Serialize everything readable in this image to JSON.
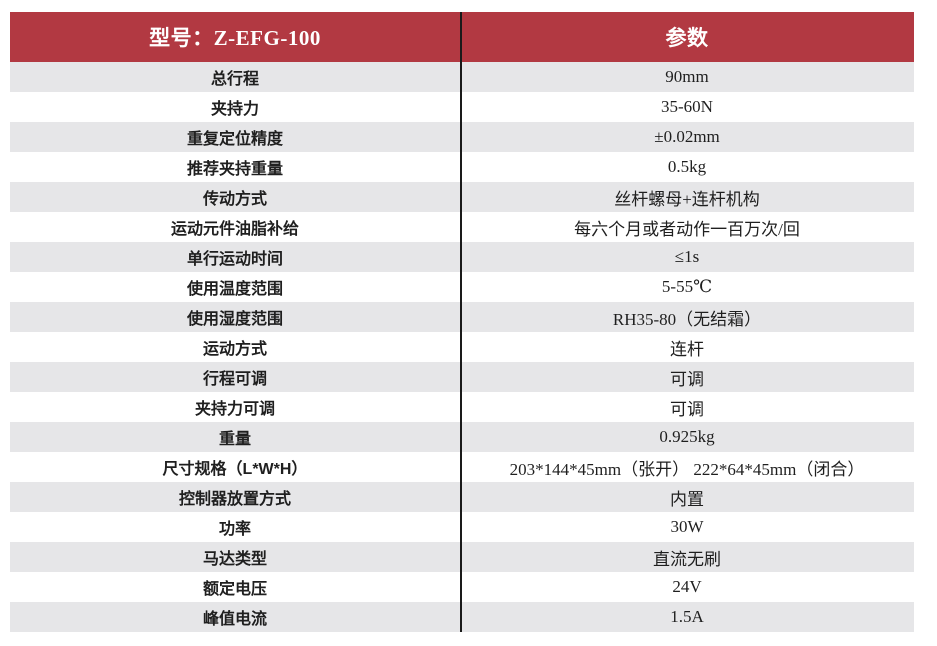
{
  "table": {
    "header": {
      "model_label": "型号：Z-EFG-100",
      "param_label": "参数"
    },
    "rows": [
      {
        "label": "总行程",
        "value": "90mm"
      },
      {
        "label": "夹持力",
        "value": "35-60N"
      },
      {
        "label": "重复定位精度",
        "value": "±0.02mm"
      },
      {
        "label": "推荐夹持重量",
        "value": "0.5kg"
      },
      {
        "label": "传动方式",
        "value": "丝杆螺母+连杆机构"
      },
      {
        "label": "运动元件油脂补给",
        "value": "每六个月或者动作一百万次/回"
      },
      {
        "label": "单行运动时间",
        "value": "≤1s"
      },
      {
        "label": "使用温度范围",
        "value": "5-55℃"
      },
      {
        "label": "使用湿度范围",
        "value": "RH35-80（无结霜）"
      },
      {
        "label": "运动方式",
        "value": "连杆"
      },
      {
        "label": "行程可调",
        "value": "可调"
      },
      {
        "label": "夹持力可调",
        "value": "可调"
      },
      {
        "label": "重量",
        "value": "0.925kg"
      },
      {
        "label": "尺寸规格（L*W*H）",
        "value": "203*144*45mm（张开） 222*64*45mm（闭合）"
      },
      {
        "label": "控制器放置方式",
        "value": "内置"
      },
      {
        "label": "功率",
        "value": "30W"
      },
      {
        "label": "马达类型",
        "value": "直流无刷"
      },
      {
        "label": "额定电压",
        "value": "24V"
      },
      {
        "label": "峰值电流",
        "value": "1.5A"
      }
    ],
    "colors": {
      "header_bg": "#B23942",
      "header_text": "#FFFFFF",
      "row_alt_bg": "#E6E6E8",
      "divider": "#1A1A1A",
      "text": "#1F1F1F"
    }
  }
}
